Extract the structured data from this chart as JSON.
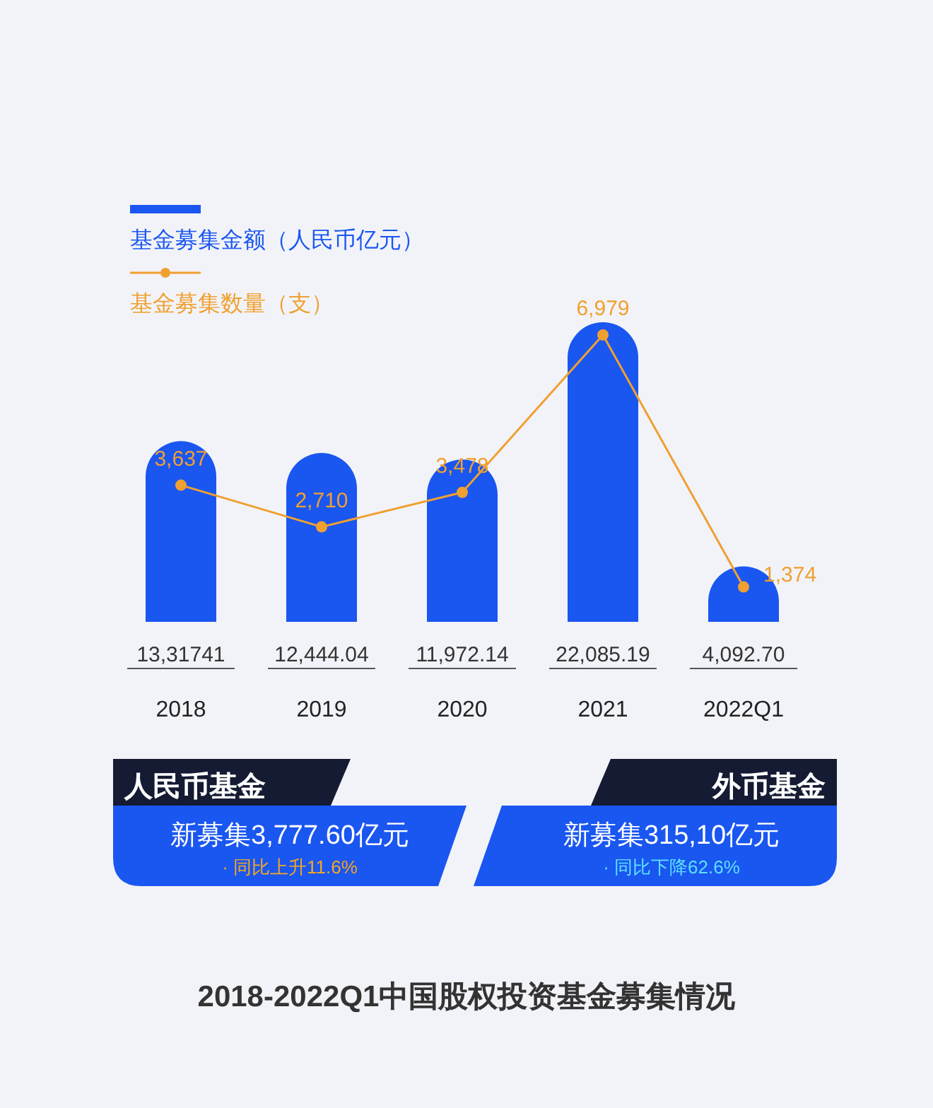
{
  "chart_data": {
    "type": "bar",
    "title": "2018-2022Q1中国股权投资基金募集情况",
    "categories": [
      "2018",
      "2019",
      "2020",
      "2021",
      "2022Q1"
    ],
    "legend": "top left",
    "marker": "circle",
    "series": [
      {
        "name": "基金募集金额（人民币亿元）",
        "color": "#1a56f0",
        "values": [
          13317.41,
          12444.04,
          11972.14,
          22085.19,
          4092.7
        ],
        "value_labels": [
          "13,31741",
          "12,444.04",
          "11,972.14",
          "22,085.19",
          "4,092.70"
        ]
      },
      {
        "name": "基金募集数量（支）",
        "type": "line",
        "axis": "y2",
        "color": "#f0a030",
        "values": [
          3637,
          2710,
          3478,
          6979,
          1374
        ],
        "value_labels": [
          "3,637",
          "2,710",
          "3,478",
          "6,979",
          "1,374"
        ]
      }
    ],
    "annotations": [
      "人民币基金",
      "新募集3,777.60亿元",
      "· 同比上升11.6%",
      "外币基金",
      "新募集315,10亿元",
      "· 同比下降62.6%"
    ]
  }
}
